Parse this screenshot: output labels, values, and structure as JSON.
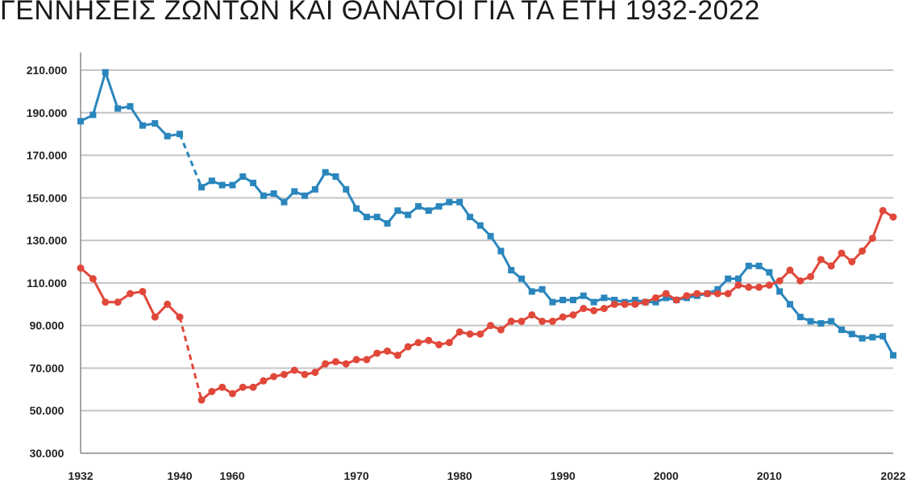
{
  "chart_data": {
    "type": "line",
    "title": "ΓΕΝΝΗΣΕΙΣ ΖΩΝΤΩΝ ΚΑΙ ΘΑΝΑΤΟΙ ΓΙΑ ΤΑ ΕΤΗ 1932-2022",
    "xlabel": "",
    "ylabel": "",
    "ylim": [
      30000,
      220000
    ],
    "grid": true,
    "legend": "none",
    "y_ticks": [
      "30.000",
      "50.000",
      "70.000",
      "90.000",
      "110.000",
      "130.000",
      "150.000",
      "170.000",
      "190.000",
      "210.000"
    ],
    "x_ticks": [
      "1932",
      "1940",
      "1960",
      "1970",
      "1980",
      "1990",
      "2000",
      "2010",
      "2022"
    ],
    "x_gap": [
      1940,
      1955
    ],
    "series": [
      {
        "color": "#2a86bd",
        "points": [
          [
            1932,
            186000
          ],
          [
            1933,
            189000
          ],
          [
            1934,
            209000
          ],
          [
            1935,
            192000
          ],
          [
            1936,
            193000
          ],
          [
            1937,
            184000
          ],
          [
            1938,
            185000
          ],
          [
            1939,
            179000
          ],
          [
            1940,
            180000
          ],
          [
            1955,
            155000
          ],
          [
            1956,
            158000
          ],
          [
            1957,
            156000
          ],
          [
            1958,
            156000
          ],
          [
            1959,
            160000
          ],
          [
            1960,
            157000
          ],
          [
            1961,
            151000
          ],
          [
            1962,
            152000
          ],
          [
            1963,
            148000
          ],
          [
            1964,
            153000
          ],
          [
            1965,
            151000
          ],
          [
            1966,
            154000
          ],
          [
            1967,
            162000
          ],
          [
            1968,
            160000
          ],
          [
            1969,
            154000
          ],
          [
            1970,
            145000
          ],
          [
            1971,
            141000
          ],
          [
            1972,
            141000
          ],
          [
            1973,
            138000
          ],
          [
            1974,
            144000
          ],
          [
            1975,
            142000
          ],
          [
            1976,
            146000
          ],
          [
            1977,
            144000
          ],
          [
            1978,
            146000
          ],
          [
            1979,
            148000
          ],
          [
            1980,
            148000
          ],
          [
            1981,
            141000
          ],
          [
            1982,
            137000
          ],
          [
            1983,
            132000
          ],
          [
            1984,
            125000
          ],
          [
            1985,
            116000
          ],
          [
            1986,
            112000
          ],
          [
            1987,
            106000
          ],
          [
            1988,
            107000
          ],
          [
            1989,
            101000
          ],
          [
            1990,
            102000
          ],
          [
            1991,
            102000
          ],
          [
            1992,
            104000
          ],
          [
            1993,
            101000
          ],
          [
            1994,
            103000
          ],
          [
            1995,
            102000
          ],
          [
            1996,
            101000
          ],
          [
            1997,
            102000
          ],
          [
            1998,
            101000
          ],
          [
            1999,
            101000
          ],
          [
            2000,
            103000
          ],
          [
            2001,
            102000
          ],
          [
            2002,
            103000
          ],
          [
            2003,
            104000
          ],
          [
            2004,
            105000
          ],
          [
            2005,
            107000
          ],
          [
            2006,
            112000
          ],
          [
            2007,
            112000
          ],
          [
            2008,
            118000
          ],
          [
            2009,
            118000
          ],
          [
            2010,
            115000
          ],
          [
            2011,
            106000
          ],
          [
            2012,
            100000
          ],
          [
            2013,
            94000
          ],
          [
            2014,
            92000
          ],
          [
            2015,
            91000
          ],
          [
            2016,
            92000
          ],
          [
            2017,
            88000
          ],
          [
            2018,
            86000
          ],
          [
            2019,
            84000
          ],
          [
            2020,
            84500
          ],
          [
            2021,
            85000
          ],
          [
            2022,
            76000
          ]
        ]
      },
      {
        "color": "#e0483a",
        "points": [
          [
            1932,
            117000
          ],
          [
            1933,
            112000
          ],
          [
            1934,
            101000
          ],
          [
            1935,
            101000
          ],
          [
            1936,
            105000
          ],
          [
            1937,
            106000
          ],
          [
            1938,
            94000
          ],
          [
            1939,
            100000
          ],
          [
            1940,
            94000
          ],
          [
            1955,
            55000
          ],
          [
            1956,
            59000
          ],
          [
            1957,
            61000
          ],
          [
            1958,
            58000
          ],
          [
            1959,
            61000
          ],
          [
            1960,
            61000
          ],
          [
            1961,
            64000
          ],
          [
            1962,
            66000
          ],
          [
            1963,
            67000
          ],
          [
            1964,
            69000
          ],
          [
            1965,
            67000
          ],
          [
            1966,
            68000
          ],
          [
            1967,
            72000
          ],
          [
            1968,
            73000
          ],
          [
            1969,
            72000
          ],
          [
            1970,
            74000
          ],
          [
            1971,
            74000
          ],
          [
            1972,
            77000
          ],
          [
            1973,
            78000
          ],
          [
            1974,
            76000
          ],
          [
            1975,
            80000
          ],
          [
            1976,
            82000
          ],
          [
            1977,
            83000
          ],
          [
            1978,
            81000
          ],
          [
            1979,
            82000
          ],
          [
            1980,
            87000
          ],
          [
            1981,
            86000
          ],
          [
            1982,
            86000
          ],
          [
            1983,
            90000
          ],
          [
            1984,
            88000
          ],
          [
            1985,
            92000
          ],
          [
            1986,
            92000
          ],
          [
            1987,
            95000
          ],
          [
            1988,
            92000
          ],
          [
            1989,
            92000
          ],
          [
            1990,
            94000
          ],
          [
            1991,
            95000
          ],
          [
            1992,
            98000
          ],
          [
            1993,
            97000
          ],
          [
            1994,
            98000
          ],
          [
            1995,
            100000
          ],
          [
            1996,
            100000
          ],
          [
            1997,
            100000
          ],
          [
            1998,
            101000
          ],
          [
            1999,
            103000
          ],
          [
            2000,
            105000
          ],
          [
            2001,
            102000
          ],
          [
            2002,
            104000
          ],
          [
            2003,
            105000
          ],
          [
            2004,
            105000
          ],
          [
            2005,
            105000
          ],
          [
            2006,
            105000
          ],
          [
            2007,
            109000
          ],
          [
            2008,
            108000
          ],
          [
            2009,
            108000
          ],
          [
            2010,
            109000
          ],
          [
            2011,
            111000
          ],
          [
            2012,
            116000
          ],
          [
            2013,
            111000
          ],
          [
            2014,
            113000
          ],
          [
            2015,
            121000
          ],
          [
            2016,
            118000
          ],
          [
            2017,
            124000
          ],
          [
            2018,
            120000
          ],
          [
            2019,
            125000
          ],
          [
            2020,
            131000
          ],
          [
            2021,
            144000
          ],
          [
            2022,
            141000
          ]
        ]
      }
    ]
  }
}
